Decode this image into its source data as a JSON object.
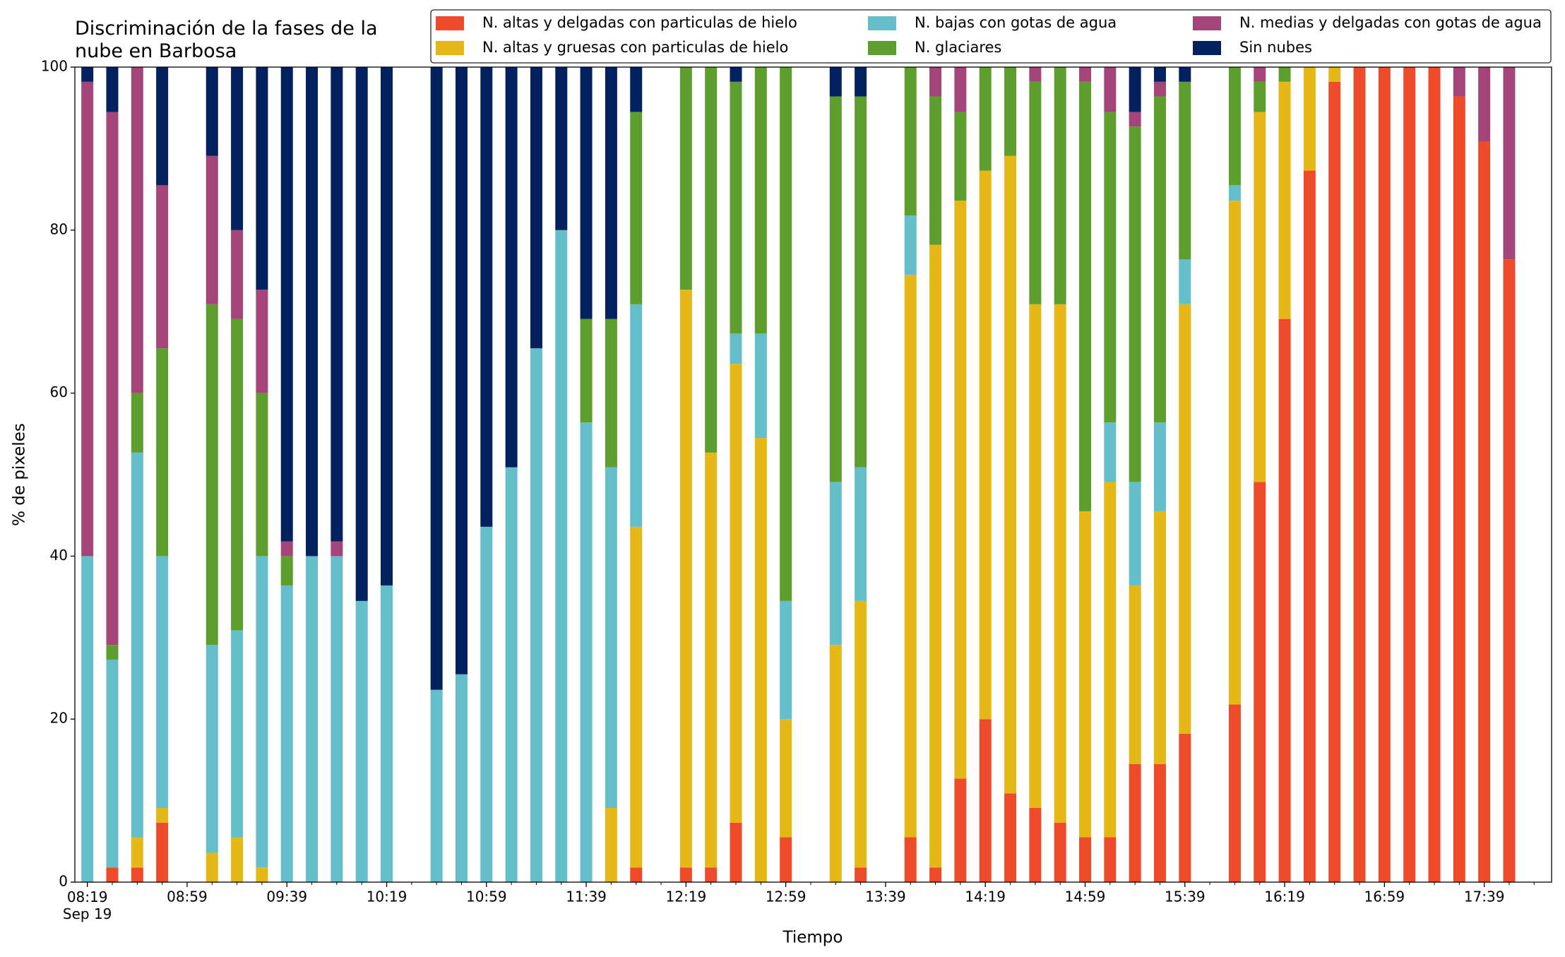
{
  "chart_data": {
    "type": "stacked_bar",
    "title": "Discriminación de la fases de la\nnube en Barbosa",
    "xlabel": "Tiempo",
    "ylabel": "% de pixeles",
    "x": [
      "08:19",
      "08:29",
      "08:39",
      "08:49",
      "09:09",
      "09:19",
      "09:29",
      "09:39",
      "09:49",
      "09:59",
      "10:09",
      "10:19",
      "10:39",
      "10:49",
      "10:59",
      "11:09",
      "11:19",
      "11:29",
      "11:39",
      "11:49",
      "11:59",
      "12:19",
      "12:29",
      "12:39",
      "12:49",
      "12:59",
      "13:19",
      "13:29",
      "13:49",
      "13:59",
      "14:09",
      "14:19",
      "14:29",
      "14:39",
      "14:49",
      "14:59",
      "15:09",
      "15:19",
      "15:29",
      "15:39",
      "15:59",
      "16:09",
      "16:19",
      "16:29",
      "16:39",
      "16:49",
      "16:59",
      "17:09",
      "17:19",
      "17:29",
      "17:39",
      "17:49"
    ],
    "series": [
      {
        "name": "N. altas y delgadas con particulas de hielo",
        "color": "#ee4b2b",
        "values": [
          0,
          1.8,
          1.8,
          7.3,
          0,
          0,
          0,
          0,
          0,
          0,
          0,
          0,
          0,
          0,
          0,
          0,
          0,
          0,
          0,
          0,
          1.8,
          1.8,
          1.8,
          7.3,
          0,
          5.5,
          0,
          1.8,
          5.5,
          1.8,
          12.7,
          20,
          10.9,
          9.1,
          7.3,
          5.5,
          5.5,
          14.5,
          14.5,
          18.2,
          21.8,
          49.1,
          69.1,
          87.3,
          98.2,
          100,
          100,
          100,
          100,
          96.4,
          90.9,
          76.4
        ]
      },
      {
        "name": "N. altas y gruesas con particulas de hielo",
        "color": "#e5b717",
        "values": [
          0,
          0,
          3.7,
          1.8,
          3.6,
          5.5,
          1.8,
          0,
          0,
          0,
          0,
          0,
          0,
          0,
          0,
          0,
          0,
          0,
          0,
          9.1,
          41.8,
          70.9,
          50.9,
          56.3,
          54.5,
          14.5,
          29.1,
          32.7,
          69,
          76.4,
          70.9,
          67.3,
          78.2,
          61.8,
          63.6,
          40,
          43.6,
          21.9,
          31,
          52.7,
          61.8,
          45.4,
          29.1,
          12.7,
          1.8,
          0,
          0,
          0,
          0,
          0,
          0,
          0
        ]
      },
      {
        "name": "N. bajas con gotas de agua",
        "color": "#65bfcb",
        "values": [
          40,
          25.5,
          47.2,
          30.9,
          25.5,
          25.4,
          38.2,
          36.4,
          40,
          40,
          34.5,
          36.4,
          23.6,
          25.5,
          43.6,
          50.9,
          65.5,
          80,
          56.4,
          41.8,
          27.3,
          0,
          0,
          3.7,
          12.8,
          14.5,
          20,
          16.4,
          7.3,
          0,
          0,
          0,
          0,
          0,
          0,
          0,
          7.3,
          12.7,
          10.9,
          5.5,
          1.9,
          0,
          0,
          0,
          0,
          0,
          0,
          0,
          0,
          0,
          0,
          0
        ]
      },
      {
        "name": "N. glaciares",
        "color": "#5e9e2e",
        "values": [
          0,
          1.8,
          7.3,
          25.5,
          41.8,
          38.2,
          20,
          3.6,
          0,
          0,
          0,
          0,
          0,
          0,
          0,
          0,
          0,
          0,
          12.7,
          18.2,
          23.6,
          27.3,
          47.3,
          30.9,
          32.7,
          65.5,
          47.3,
          45.5,
          18.2,
          18.2,
          10.9,
          12.7,
          10.9,
          27.3,
          29.1,
          52.7,
          38.1,
          43.6,
          40,
          21.8,
          14.5,
          3.7,
          1.8,
          0,
          0,
          0,
          0,
          0,
          0,
          0,
          0,
          0
        ]
      },
      {
        "name": "N. medias y delgadas con gotas de agua",
        "color": "#a4457a",
        "values": [
          58.2,
          65.4,
          40,
          20,
          18.2,
          10.9,
          12.7,
          1.8,
          0,
          1.8,
          0,
          0,
          0,
          0,
          0,
          0,
          0,
          0,
          0,
          0,
          0,
          0,
          0,
          0,
          0,
          0,
          0,
          0,
          0,
          3.6,
          5.5,
          0,
          0,
          1.8,
          0,
          1.8,
          5.5,
          1.8,
          1.8,
          0,
          0,
          1.8,
          0,
          0,
          0,
          0,
          0,
          0,
          0,
          3.6,
          9.1,
          23.6
        ]
      },
      {
        "name": "Sin nubes",
        "color": "#03215e",
        "values": [
          1.8,
          5.5,
          0,
          14.5,
          10.9,
          20,
          27.3,
          58.2,
          60,
          58.2,
          65.5,
          63.6,
          76.4,
          74.5,
          56.4,
          49.1,
          34.5,
          20,
          30.9,
          30.9,
          5.5,
          0,
          0,
          1.8,
          0,
          0,
          3.6,
          3.6,
          0,
          0,
          0,
          0,
          0,
          0,
          0,
          0,
          0,
          5.5,
          1.8,
          1.8,
          0,
          0,
          0,
          0,
          0,
          0,
          0,
          0,
          0,
          0,
          0,
          0
        ]
      }
    ],
    "xlim": [
      "08:14",
      "18:06"
    ],
    "xticks": [
      {
        "value": "08:19",
        "label": "08:19\nSep 19"
      },
      "08:59",
      "09:39",
      "10:19",
      "10:59",
      "11:39",
      "12:19",
      "12:59",
      "13:39",
      "14:19",
      "14:59",
      "15:39",
      "16:19",
      "16:59",
      "17:39"
    ],
    "xticks_minor": [
      "08:29",
      "08:39",
      "08:49",
      "09:09",
      "09:19",
      "09:29",
      "09:49",
      "09:59",
      "10:09",
      "10:29",
      "10:39",
      "10:49",
      "11:09",
      "11:19",
      "11:29",
      "11:49",
      "11:59",
      "12:09",
      "12:29",
      "12:39",
      "12:49",
      "13:09",
      "13:19",
      "13:29",
      "13:49",
      "13:59",
      "14:09",
      "14:29",
      "14:39",
      "14:49",
      "15:09",
      "15:19",
      "15:29",
      "15:49",
      "15:59",
      "16:09",
      "16:29",
      "16:39",
      "16:49",
      "17:09",
      "17:19",
      "17:29",
      "17:49",
      "17:59"
    ],
    "ylim": [
      0,
      100
    ],
    "yticks": [
      0,
      20,
      40,
      60,
      80,
      100
    ],
    "grid": false,
    "legend": "upper right",
    "legend_columns": 3
  }
}
